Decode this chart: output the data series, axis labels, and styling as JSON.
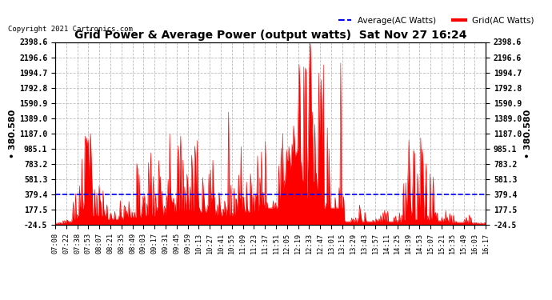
{
  "title": "Grid Power & Average Power (output watts)  Sat Nov 27 16:24",
  "copyright": "Copyright 2021 Cartronics.com",
  "legend_avg": "Average(AC Watts)",
  "legend_grid": "Grid(AC Watts)",
  "ylabel_left": "• 380.580",
  "ylabel_right": "• 380.580",
  "ymin": -24.5,
  "ymax": 2398.6,
  "avg_value": 380.58,
  "background_color": "#ffffff",
  "grid_color": "#bbbbbb",
  "fill_color": "#ff0000",
  "avg_line_color": "#0000ff",
  "right_yticks": [
    2398.6,
    2196.6,
    1994.7,
    1792.8,
    1590.9,
    1389.0,
    1187.0,
    985.1,
    783.2,
    581.3,
    379.4,
    177.5,
    -24.5
  ],
  "x_tick_labels": [
    "07:08",
    "07:22",
    "07:38",
    "07:53",
    "08:07",
    "08:21",
    "08:35",
    "08:49",
    "09:03",
    "09:17",
    "09:31",
    "09:45",
    "09:59",
    "10:13",
    "10:27",
    "10:41",
    "10:55",
    "11:09",
    "11:23",
    "11:37",
    "11:51",
    "12:05",
    "12:19",
    "12:33",
    "12:47",
    "13:01",
    "13:15",
    "13:29",
    "13:43",
    "13:57",
    "14:11",
    "14:25",
    "14:39",
    "14:53",
    "15:07",
    "15:21",
    "15:35",
    "15:49",
    "16:03",
    "16:17"
  ]
}
